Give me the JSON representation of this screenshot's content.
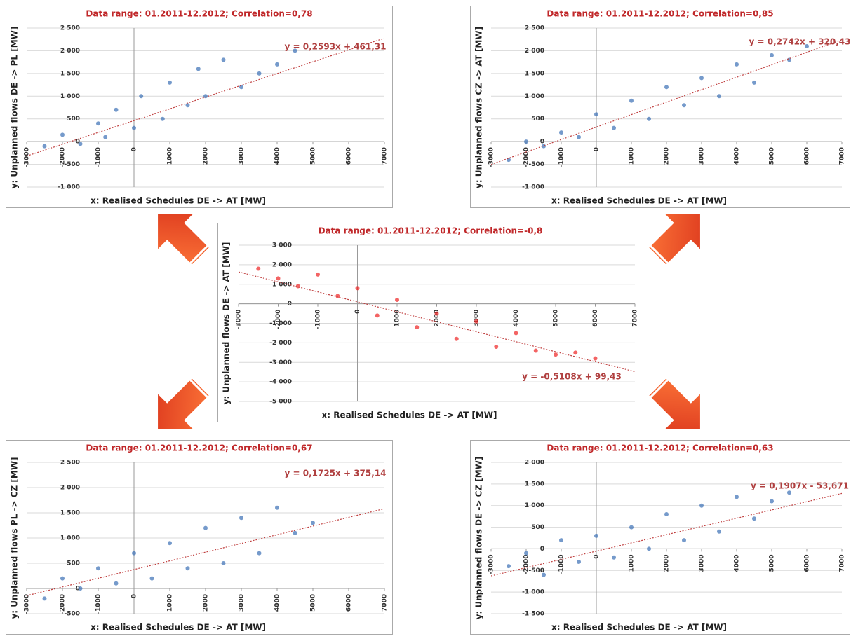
{
  "chart_data": [
    {
      "type": "scatter",
      "title": "Data range: 01.2011-12.2012; Correlation=0,78",
      "x_label": "x: Realised Schedules DE -> AT [MW]",
      "y_label": "y: Unplanned flows DE -> PL [MW]",
      "color": "#3a6fb5",
      "xlim": [
        -3000,
        7000
      ],
      "xticks": [
        -3000,
        -2000,
        -1000,
        0,
        1000,
        2000,
        3000,
        4000,
        5000,
        6000,
        7000
      ],
      "ylim": [
        -1000,
        2500
      ],
      "yticks": [
        {
          "value": -1000,
          "label": "-1 000"
        },
        -500,
        0,
        500,
        {
          "value": 1000,
          "label": "1 000"
        },
        {
          "value": 1500,
          "label": "1 500"
        },
        {
          "value": 2000,
          "label": "2 000"
        },
        {
          "value": 2500,
          "label": "2 500"
        }
      ],
      "trendline": {
        "slope": 0.2593,
        "intercept": 461.31,
        "label": "y = 0,2593x + 461,31"
      },
      "x": [
        -2500,
        -2000,
        -1500,
        -1000,
        -800,
        -500,
        0,
        200,
        800,
        1000,
        1500,
        1800,
        2000,
        2500,
        3000,
        3500,
        4000,
        4500
      ],
      "y": [
        -100,
        150,
        -50,
        400,
        100,
        700,
        300,
        1000,
        500,
        1300,
        800,
        1600,
        1000,
        1800,
        1200,
        1500,
        1700,
        2000
      ]
    },
    {
      "type": "scatter",
      "title": "Data range: 01.2011-12.2012; Correlation=0,85",
      "x_label": "x: Realised Schedules DE -> AT [MW]",
      "y_label": "y: Unplanned flows CZ -> AT [MW]",
      "color": "#3a6fb5",
      "xlim": [
        -3000,
        7000
      ],
      "xticks": [
        -3000,
        -2000,
        -1000,
        0,
        1000,
        2000,
        3000,
        4000,
        5000,
        6000,
        7000
      ],
      "ylim": [
        -1000,
        2500
      ],
      "yticks": [
        {
          "value": -1000,
          "label": "-1 000"
        },
        -500,
        0,
        500,
        {
          "value": 1000,
          "label": "1 000"
        },
        {
          "value": 1500,
          "label": "1 500"
        },
        {
          "value": 2000,
          "label": "2 000"
        },
        {
          "value": 2500,
          "label": "2 500"
        }
      ],
      "trendline": {
        "slope": 0.2742,
        "intercept": 320.43,
        "label": "y = 0,2742x + 320,43"
      },
      "x": [
        -2500,
        -2000,
        -1500,
        -1000,
        -500,
        0,
        500,
        1000,
        1500,
        2000,
        2500,
        3000,
        3500,
        4000,
        4500,
        5000,
        5500,
        6000
      ],
      "y": [
        -400,
        0,
        -100,
        200,
        100,
        600,
        300,
        900,
        500,
        1200,
        800,
        1400,
        1000,
        1700,
        1300,
        1900,
        1800,
        2100
      ]
    },
    {
      "type": "scatter",
      "title": "Data range: 01.2011-12.2012; Correlation=-0,8",
      "x_label": "x: Realised Schedules DE -> AT [MW]",
      "y_label": "y: Unplanned flows DE -> AT [MW]",
      "color": "#ee2222",
      "xlim": [
        -3000,
        7000
      ],
      "xticks": [
        -3000,
        -2000,
        -1000,
        0,
        1000,
        2000,
        3000,
        4000,
        5000,
        6000,
        7000
      ],
      "ylim": [
        -5000,
        3000
      ],
      "yticks": [
        {
          "value": -5000,
          "label": "-5 000"
        },
        {
          "value": -4000,
          "label": "-4 000"
        },
        {
          "value": -3000,
          "label": "-3 000"
        },
        {
          "value": -2000,
          "label": "-2 000"
        },
        {
          "value": -1000,
          "label": "-1 000"
        },
        0,
        {
          "value": 1000,
          "label": "1 000"
        },
        {
          "value": 2000,
          "label": "2 000"
        },
        {
          "value": 3000,
          "label": "3 000"
        }
      ],
      "trendline": {
        "slope": -0.5108,
        "intercept": 99.43,
        "label": "y = -0,5108x + 99,43"
      },
      "x": [
        -2500,
        -2000,
        -1500,
        -1000,
        -500,
        0,
        500,
        1000,
        1500,
        2000,
        2500,
        3000,
        3500,
        4000,
        4500,
        5000,
        5500,
        6000
      ],
      "y": [
        1800,
        1300,
        900,
        1500,
        400,
        800,
        -600,
        200,
        -1200,
        -500,
        -1800,
        -900,
        -2200,
        -1500,
        -2400,
        -2600,
        -2500,
        -2800
      ]
    },
    {
      "type": "scatter",
      "title": "Data range: 01.2011-12.2012; Correlation=0,67",
      "x_label": "x: Realised Schedules DE -> AT [MW]",
      "y_label": "y: Unplanned flows PL -> CZ [MW]",
      "color": "#3a6fb5",
      "xlim": [
        -3000,
        7000
      ],
      "xticks": [
        -3000,
        -2000,
        -1000,
        0,
        1000,
        2000,
        3000,
        4000,
        5000,
        6000,
        7000
      ],
      "ylim": [
        -500,
        2500
      ],
      "yticks": [
        -500,
        0,
        500,
        {
          "value": 1000,
          "label": "1 000"
        },
        {
          "value": 1500,
          "label": "1 500"
        },
        {
          "value": 2000,
          "label": "2 000"
        },
        {
          "value": 2500,
          "label": "2 500"
        }
      ],
      "trendline": {
        "slope": 0.1725,
        "intercept": 375.14,
        "label": "y = 0,1725x + 375,14"
      },
      "x": [
        -2500,
        -2000,
        -1500,
        -1000,
        -500,
        0,
        500,
        1000,
        1500,
        2000,
        2500,
        3000,
        3500,
        4000,
        4500,
        5000
      ],
      "y": [
        -200,
        200,
        0,
        400,
        100,
        700,
        200,
        900,
        400,
        1200,
        500,
        1400,
        700,
        1600,
        1100,
        1300
      ]
    },
    {
      "type": "scatter",
      "title": "Data range: 01.2011-12.2012; Correlation=0,63",
      "x_label": "x: Realised Schedules DE -> AT [MW]",
      "y_label": "y: Unplanned flows DE -> CZ [MW]",
      "color": "#3a6fb5",
      "xlim": [
        -3000,
        7000
      ],
      "xticks": [
        -3000,
        -2000,
        -1000,
        0,
        1000,
        2000,
        3000,
        4000,
        5000,
        6000,
        7000
      ],
      "ylim": [
        -1500,
        2000
      ],
      "yticks": [
        {
          "value": -1500,
          "label": "-1 500"
        },
        {
          "value": -1000,
          "label": "-1 000"
        },
        -500,
        0,
        500,
        {
          "value": 1000,
          "label": "1 000"
        },
        {
          "value": 1500,
          "label": "1 500"
        },
        {
          "value": 2000,
          "label": "2 000"
        }
      ],
      "trendline": {
        "slope": 0.1907,
        "intercept": -53.671,
        "label": "y = 0,1907x - 53,671"
      },
      "x": [
        -2500,
        -2000,
        -1500,
        -1000,
        -500,
        0,
        500,
        1000,
        1500,
        2000,
        2500,
        3000,
        3500,
        4000,
        4500,
        5000,
        5500
      ],
      "y": [
        -400,
        -100,
        -600,
        200,
        -300,
        300,
        -200,
        500,
        0,
        800,
        200,
        1000,
        400,
        1200,
        700,
        1100,
        1300
      ]
    }
  ]
}
